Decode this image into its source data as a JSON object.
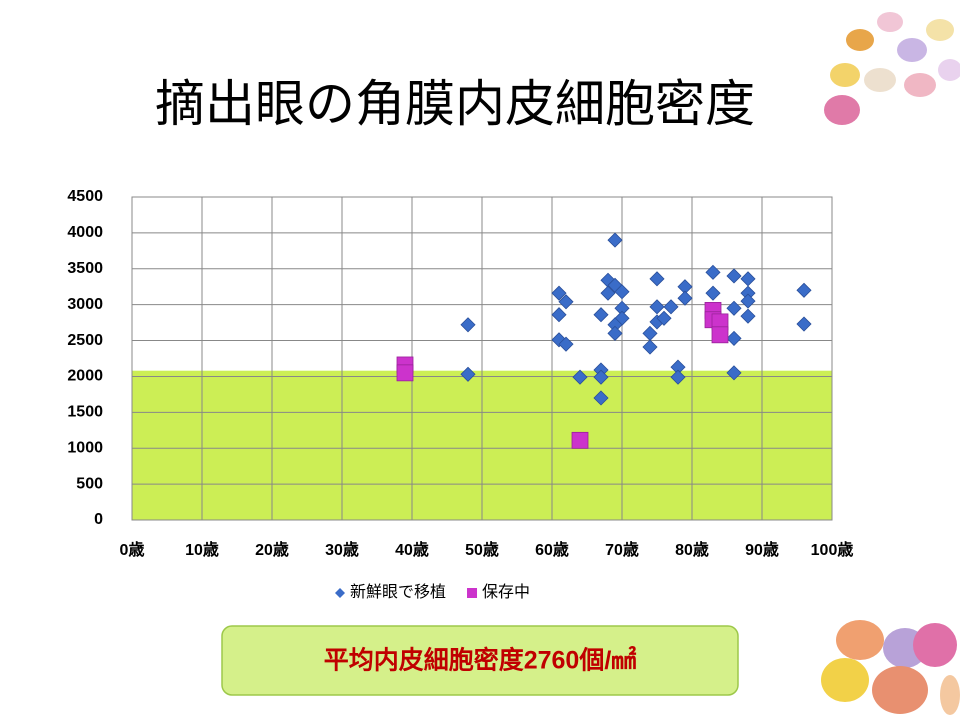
{
  "chart_data": {
    "type": "scatter",
    "title": "摘出眼の角膜内皮細胞密度",
    "callout": "平均内皮細胞密度2760個/㎟",
    "xlim": [
      0,
      100
    ],
    "xticks": [
      {
        "value": 0,
        "label": "0歳"
      },
      {
        "value": 10,
        "label": "10歳"
      },
      {
        "value": 20,
        "label": "20歳"
      },
      {
        "value": 30,
        "label": "30歳"
      },
      {
        "value": 40,
        "label": "40歳"
      },
      {
        "value": 50,
        "label": "50歳"
      },
      {
        "value": 60,
        "label": "60歳"
      },
      {
        "value": 70,
        "label": "70歳"
      },
      {
        "value": 80,
        "label": "80歳"
      },
      {
        "value": 90,
        "label": "90歳"
      },
      {
        "value": 100,
        "label": "100歳"
      }
    ],
    "ylim": [
      0,
      4500
    ],
    "yticks": [
      0,
      500,
      1000,
      1500,
      2000,
      2500,
      3000,
      3500,
      4000,
      4500
    ],
    "grid": true,
    "legend": "bottom",
    "shaded_band": {
      "ylim": [
        0,
        2080
      ],
      "color": "#ccee55"
    },
    "series": [
      {
        "name": "新鮮眼で移植",
        "color": "#3a6cc8",
        "marker": "diamond",
        "x": [
          48,
          48,
          61,
          61,
          62,
          61,
          62,
          64,
          67,
          67,
          67,
          67,
          68,
          68,
          69,
          69,
          70,
          70,
          70,
          69,
          69,
          75,
          75,
          74,
          74,
          75,
          76,
          77,
          79,
          79,
          78,
          78,
          83,
          83,
          83,
          86,
          86,
          86,
          86,
          88,
          88,
          88,
          88,
          96,
          96
        ],
        "values": [
          2720,
          2030,
          3160,
          2860,
          3040,
          2510,
          2450,
          1990,
          2860,
          2090,
          1990,
          1700,
          3340,
          3160,
          3900,
          3270,
          3180,
          2950,
          2810,
          2720,
          2600,
          3360,
          2970,
          2410,
          2600,
          2760,
          2810,
          2970,
          3250,
          3090,
          2130,
          1990,
          3450,
          3160,
          2790,
          3400,
          2950,
          2530,
          2050,
          3360,
          3160,
          3050,
          2840,
          3200,
          2730
        ]
      },
      {
        "name": "保存中",
        "color": "#cc33cc",
        "marker": "square",
        "x": [
          39,
          39,
          64,
          83,
          83,
          84,
          84
        ],
        "values": [
          2160,
          2050,
          1110,
          2920,
          2790,
          2760,
          2580
        ]
      }
    ]
  }
}
